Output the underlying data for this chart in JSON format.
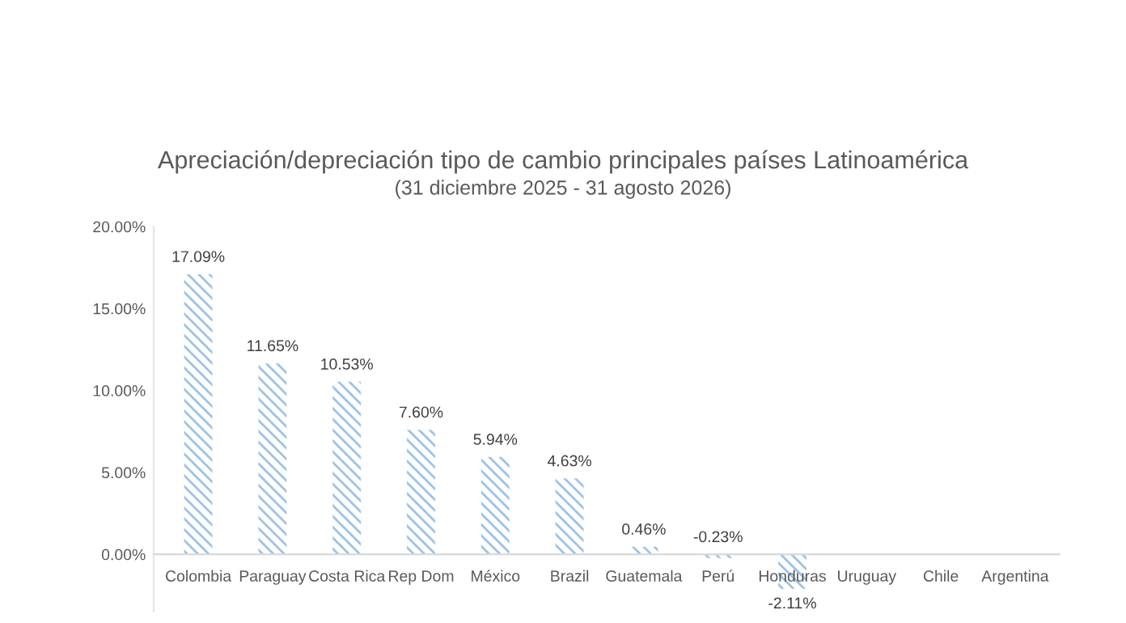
{
  "chart_data": {
    "type": "bar",
    "title": "Apreciación/depreciación tipo de cambio principales países Latinoamérica",
    "subtitle": "(31 diciembre 2025 - 31 agosto 2026)",
    "categories": [
      "Colombia",
      "Paraguay",
      "Costa Rica",
      "Rep Dom",
      "México",
      "Brazil",
      "Guatemala",
      "Perú",
      "Honduras",
      "Uruguay",
      "Chile",
      "Argentina"
    ],
    "values": [
      17.09,
      11.65,
      10.53,
      7.6,
      5.94,
      4.63,
      0.46,
      -0.23,
      -2.11,
      null,
      null,
      null
    ],
    "value_labels": [
      "17.09%",
      "11.65%",
      "10.53%",
      "7.60%",
      "5.94%",
      "4.63%",
      "0.46%",
      "-0.23%",
      "-2.11%",
      null,
      null,
      null
    ],
    "color": "#9dc3e6",
    "ylim": [
      -3.5,
      20
    ],
    "yticks": [
      {
        "value": 0,
        "label": "0.00%"
      },
      {
        "value": 5,
        "label": "5.00%"
      },
      {
        "value": 10,
        "label": "10.00%"
      },
      {
        "value": 15,
        "label": "15.00%"
      },
      {
        "value": 20,
        "label": "20.00%"
      }
    ],
    "grid": false,
    "legend": false
  }
}
